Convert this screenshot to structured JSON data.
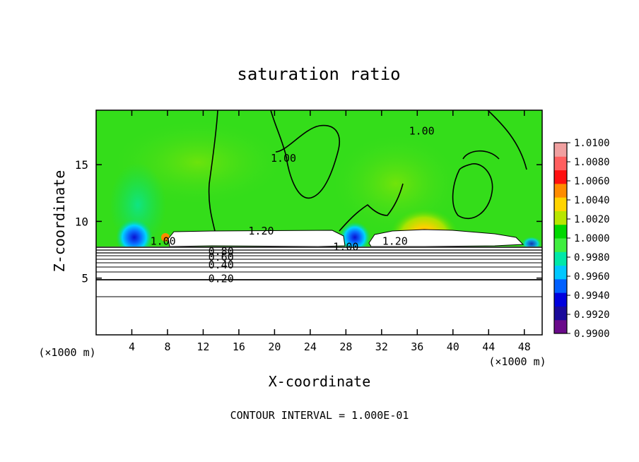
{
  "chart_data": {
    "type": "heatmap",
    "title": "saturation ratio",
    "xlabel": "X-coordinate",
    "ylabel": "Z-coordinate",
    "x_units": "(×1000 m)",
    "x_ticks": [
      4,
      8,
      12,
      16,
      20,
      24,
      28,
      32,
      36,
      40,
      44,
      48
    ],
    "y_ticks": [
      5,
      10,
      15
    ],
    "xlim": [
      0,
      50
    ],
    "ylim": [
      0,
      19.8
    ],
    "footer": "CONTOUR INTERVAL = 1.000E-01",
    "colorbar": {
      "min": 0.99,
      "max": 1.01,
      "labels": [
        "1.0100",
        "1.0080",
        "1.0060",
        "1.0040",
        "1.0020",
        "1.0000",
        "0.9980",
        "0.9960",
        "0.9940",
        "0.9920",
        "0.9900"
      ],
      "colors": [
        "#6a0a8a",
        "#1a0a9a",
        "#0000dd",
        "#0060ff",
        "#00c8ff",
        "#00e8a8",
        "#40ee40",
        "#00d800",
        "#b8e600",
        "#ffd400",
        "#ff8c00",
        "#ff1010",
        "#ff5f5f",
        "#f0a0a0"
      ]
    },
    "contour_labels": [
      {
        "text": "1.00",
        "x": 21.0,
        "z": 15.5
      },
      {
        "text": "1.00",
        "x": 36.5,
        "z": 17.9
      },
      {
        "text": "1.20",
        "x": 18.5,
        "z": 9.1
      },
      {
        "text": "1.20",
        "x": 33.5,
        "z": 8.2
      },
      {
        "text": "1.00",
        "x": 7.5,
        "z": 8.2
      },
      {
        "text": "1.00",
        "x": 28.0,
        "z": 7.7
      },
      {
        "text": "0.80",
        "x": 14.0,
        "z": 7.3
      },
      {
        "text": "0.60",
        "x": 14.0,
        "z": 6.8
      },
      {
        "text": "0.40",
        "x": 14.0,
        "z": 6.1
      },
      {
        "text": "0.20",
        "x": 14.0,
        "z": 4.9
      }
    ]
  }
}
